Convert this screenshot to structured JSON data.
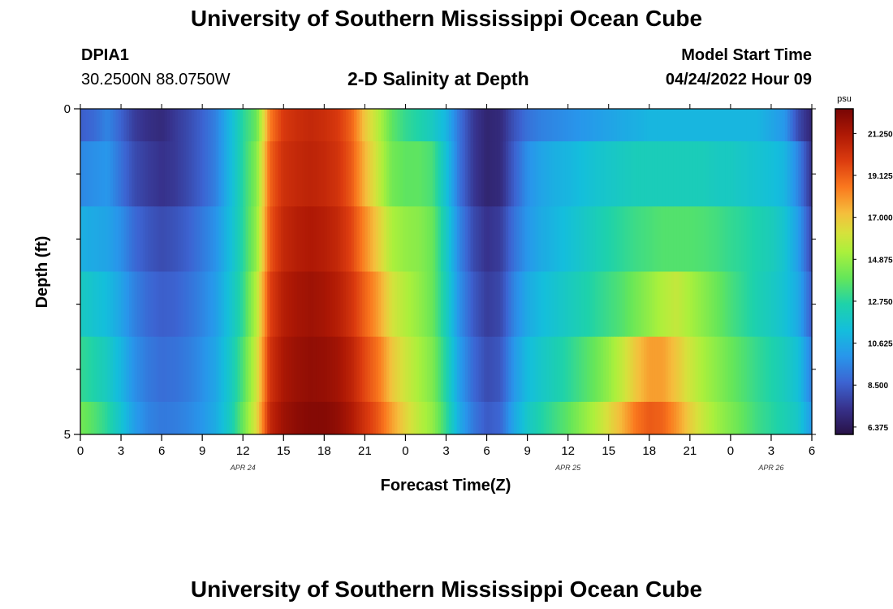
{
  "header": {
    "title": "University of Southern Mississippi Ocean Cube",
    "station_id": "DPIA1",
    "station_coords": "30.2500N  88.0750W",
    "chart_title": "2-D Salinity at Depth",
    "model_start_label": "Model Start Time",
    "model_start_value": "04/24/2022 Hour 09"
  },
  "footer": {
    "title": "University of Southern Mississippi Ocean Cube"
  },
  "chart_data": {
    "type": "heatmap",
    "title": "2-D Salinity at Depth",
    "xlabel": "Forecast Time(Z)",
    "ylabel": "Depth (ft)",
    "y_tick_labels": [
      "0",
      "5"
    ],
    "ylim": [
      0,
      5
    ],
    "x_tick_labels": [
      "0",
      "3",
      "6",
      "9",
      "12",
      "15",
      "18",
      "21",
      "0",
      "3",
      "6",
      "9",
      "12",
      "15",
      "18",
      "21",
      "0",
      "3",
      "6"
    ],
    "x_hours": [
      0,
      54
    ],
    "date_labels": [
      {
        "label": "APR 24",
        "hour": 12
      },
      {
        "label": "APR 25",
        "hour": 36
      },
      {
        "label": "APR 26",
        "hour": 51
      }
    ],
    "colorbar": {
      "unit": "psu",
      "min": 6.0,
      "max": 22.5,
      "tick_labels": [
        "21.250",
        "19.125",
        "17.000",
        "14.875",
        "12.750",
        "10.625",
        "8.500",
        "6.375"
      ],
      "tick_values": [
        21.25,
        19.125,
        17.0,
        14.875,
        12.75,
        10.625,
        8.5,
        6.375
      ]
    },
    "depth_layers": [
      {
        "depth_range": [
          0,
          0.5
        ],
        "series_hours": [
          0,
          1,
          2,
          3,
          4,
          5,
          6,
          7,
          8,
          9,
          10,
          11,
          12,
          13,
          14,
          15,
          16,
          17,
          18,
          19,
          20,
          21,
          22,
          23,
          24,
          25,
          26,
          27,
          28,
          29,
          30,
          31,
          32,
          33,
          34,
          35,
          36,
          37,
          38,
          39,
          40,
          41,
          42,
          43,
          44,
          45,
          46,
          47,
          48,
          49,
          50,
          51,
          52,
          53,
          54
        ],
        "values": [
          8.5,
          8.8,
          9.5,
          8.6,
          7.6,
          7.2,
          7.0,
          7.5,
          8.0,
          8.6,
          9.4,
          11.0,
          12.8,
          14.0,
          18.5,
          20.0,
          20.4,
          20.6,
          20.4,
          20.0,
          19.0,
          17.0,
          15.5,
          13.8,
          13.0,
          12.6,
          12.0,
          11.0,
          9.0,
          7.5,
          6.8,
          7.0,
          8.2,
          9.0,
          9.4,
          9.6,
          9.8,
          10.0,
          10.2,
          10.4,
          10.6,
          10.8,
          11.0,
          11.0,
          11.0,
          11.0,
          11.0,
          11.0,
          11.0,
          11.0,
          11.0,
          10.5,
          10.0,
          8.0,
          6.8
        ]
      },
      {
        "depth_range": [
          0.5,
          1.5
        ],
        "series_hours": [
          0,
          1,
          2,
          3,
          4,
          5,
          6,
          7,
          8,
          9,
          10,
          11,
          12,
          13,
          14,
          15,
          16,
          17,
          18,
          19,
          20,
          21,
          22,
          23,
          24,
          25,
          26,
          27,
          28,
          29,
          30,
          31,
          32,
          33,
          34,
          35,
          36,
          37,
          38,
          39,
          40,
          41,
          42,
          43,
          44,
          45,
          46,
          47,
          48,
          49,
          50,
          51,
          52,
          53,
          54
        ],
        "values": [
          9.6,
          9.8,
          10.0,
          9.0,
          8.0,
          7.6,
          7.3,
          7.5,
          8.0,
          8.6,
          9.4,
          11.0,
          12.8,
          14.5,
          19.0,
          20.3,
          20.6,
          20.8,
          20.6,
          20.2,
          19.2,
          17.4,
          15.8,
          14.2,
          13.8,
          13.8,
          13.4,
          11.5,
          9.0,
          7.5,
          6.8,
          7.0,
          8.5,
          9.8,
          10.4,
          10.8,
          11.0,
          11.3,
          11.6,
          11.8,
          12.0,
          12.2,
          12.2,
          12.2,
          12.2,
          12.2,
          12.2,
          12.0,
          12.0,
          11.8,
          11.6,
          11.4,
          11.0,
          9.5,
          7.2
        ]
      },
      {
        "depth_range": [
          1.5,
          2.5
        ],
        "series_hours": [
          0,
          1,
          2,
          3,
          4,
          5,
          6,
          7,
          8,
          9,
          10,
          11,
          12,
          13,
          14,
          15,
          16,
          17,
          18,
          19,
          20,
          21,
          22,
          23,
          24,
          25,
          26,
          27,
          28,
          29,
          30,
          31,
          32,
          33,
          34,
          35,
          36,
          37,
          38,
          39,
          40,
          41,
          42,
          43,
          44,
          45,
          46,
          47,
          48,
          49,
          50,
          51,
          52,
          53,
          54
        ],
        "values": [
          10.8,
          10.6,
          10.4,
          9.8,
          8.8,
          8.3,
          8.0,
          8.2,
          8.6,
          9.2,
          9.9,
          11.2,
          12.8,
          14.8,
          19.3,
          20.6,
          21.0,
          21.2,
          21.0,
          20.6,
          19.7,
          18.2,
          16.8,
          15.3,
          14.8,
          14.6,
          14.0,
          12.0,
          9.5,
          8.0,
          7.3,
          7.6,
          9.0,
          10.0,
          10.6,
          11.0,
          11.4,
          11.8,
          12.2,
          12.6,
          12.9,
          13.2,
          13.4,
          13.6,
          13.6,
          13.6,
          13.5,
          13.3,
          13.0,
          12.8,
          12.5,
          12.2,
          11.6,
          10.2,
          7.8
        ]
      },
      {
        "depth_range": [
          2.5,
          3.5
        ],
        "series_hours": [
          0,
          1,
          2,
          3,
          4,
          5,
          6,
          7,
          8,
          9,
          10,
          11,
          12,
          13,
          14,
          15,
          16,
          17,
          18,
          19,
          20,
          21,
          22,
          23,
          24,
          25,
          26,
          27,
          28,
          29,
          30,
          31,
          32,
          33,
          34,
          35,
          36,
          37,
          38,
          39,
          40,
          41,
          42,
          43,
          44,
          45,
          46,
          47,
          48,
          49,
          50,
          51,
          52,
          53,
          54
        ],
        "values": [
          12.0,
          11.6,
          11.2,
          10.4,
          9.4,
          8.8,
          8.5,
          8.6,
          9.0,
          9.5,
          10.2,
          11.5,
          13.0,
          15.5,
          19.8,
          21.0,
          21.4,
          21.6,
          21.4,
          21.0,
          20.2,
          19.0,
          17.8,
          16.2,
          15.4,
          14.8,
          14.0,
          12.2,
          9.8,
          8.4,
          7.6,
          7.9,
          9.5,
          10.6,
          11.2,
          11.6,
          12.0,
          12.4,
          12.8,
          13.2,
          13.6,
          14.2,
          14.8,
          15.4,
          15.8,
          15.2,
          14.6,
          14.0,
          13.4,
          12.9,
          12.4,
          12.0,
          11.5,
          10.6,
          8.4
        ]
      },
      {
        "depth_range": [
          3.5,
          4.5
        ],
        "series_hours": [
          0,
          1,
          2,
          3,
          4,
          5,
          6,
          7,
          8,
          9,
          10,
          11,
          12,
          13,
          14,
          15,
          16,
          17,
          18,
          19,
          20,
          21,
          22,
          23,
          24,
          25,
          26,
          27,
          28,
          29,
          30,
          31,
          32,
          33,
          34,
          35,
          36,
          37,
          38,
          39,
          40,
          41,
          42,
          43,
          44,
          45,
          46,
          47,
          48,
          49,
          50,
          51,
          52,
          53,
          54
        ],
        "values": [
          13.0,
          12.6,
          12.0,
          11.0,
          9.8,
          9.2,
          8.9,
          9.0,
          9.3,
          9.8,
          10.5,
          11.8,
          13.5,
          16.0,
          20.2,
          21.3,
          21.7,
          21.9,
          21.8,
          21.5,
          20.8,
          19.6,
          18.6,
          17.0,
          16.0,
          15.2,
          14.4,
          12.6,
          10.2,
          8.8,
          8.0,
          8.3,
          10.0,
          11.2,
          11.8,
          12.3,
          12.8,
          13.4,
          14.0,
          14.8,
          15.8,
          17.0,
          17.8,
          17.8,
          17.0,
          16.0,
          15.2,
          14.6,
          14.0,
          13.5,
          13.0,
          12.6,
          12.1,
          11.4,
          9.3
        ]
      },
      {
        "depth_range": [
          4.5,
          5
        ],
        "series_hours": [
          0,
          1,
          2,
          3,
          4,
          5,
          6,
          7,
          8,
          9,
          10,
          11,
          12,
          13,
          14,
          15,
          16,
          17,
          18,
          19,
          20,
          21,
          22,
          23,
          24,
          25,
          26,
          27,
          28,
          29,
          30,
          31,
          32,
          33,
          34,
          35,
          36,
          37,
          38,
          39,
          40,
          41,
          42,
          43,
          44,
          45,
          46,
          47,
          48,
          49,
          50,
          51,
          52,
          53,
          54
        ],
        "values": [
          14.2,
          13.6,
          12.8,
          11.6,
          10.2,
          9.5,
          9.2,
          9.3,
          9.6,
          10.0,
          10.7,
          12.0,
          14.0,
          16.4,
          20.6,
          21.6,
          22.0,
          22.2,
          22.2,
          21.9,
          21.2,
          20.2,
          19.2,
          17.8,
          16.6,
          15.6,
          14.8,
          13.0,
          10.6,
          9.2,
          8.4,
          8.7,
          10.5,
          11.8,
          12.6,
          13.2,
          13.8,
          14.6,
          15.4,
          16.4,
          17.4,
          18.6,
          19.2,
          19.0,
          18.0,
          16.8,
          15.8,
          15.0,
          14.4,
          13.8,
          13.2,
          12.8,
          12.4,
          11.8,
          10.0
        ]
      }
    ]
  }
}
